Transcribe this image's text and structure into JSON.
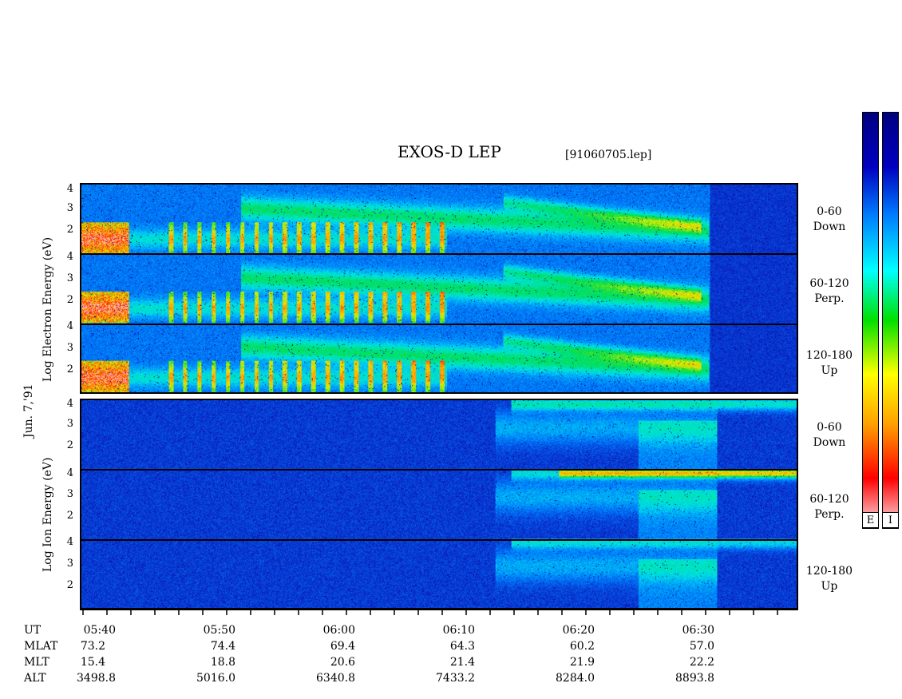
{
  "title": "EXOS-D LEP",
  "filename": "[91060705.lep]",
  "date_label": "Jun. 7,'91",
  "electron_axis_label": "Log   Electron   Energy (eV)",
  "ion_axis_label": "Log   Ion   Energy (eV)",
  "y_ticks": [
    "4",
    "3",
    "2"
  ],
  "pitch_labels": {
    "p1": [
      "0-60",
      "Down"
    ],
    "p2": [
      "60-120",
      "Perp."
    ],
    "p3": [
      "120-180",
      "Up"
    ],
    "p4": [
      "0-60",
      "Down"
    ],
    "p5": [
      "60-120",
      "Perp."
    ],
    "p6": [
      "120-180",
      "Up"
    ]
  },
  "colorbar_labels": [
    "E",
    "I"
  ],
  "row_labels": [
    "UT",
    "MLAT",
    "MLT",
    "ALT"
  ],
  "columns": [
    {
      "ut": "05:40",
      "mlat": "73.2",
      "mlt": "15.4",
      "alt": "3498.8"
    },
    {
      "ut": "05:50",
      "mlat": "74.4",
      "mlt": "18.8",
      "alt": "5016.0"
    },
    {
      "ut": "06:00",
      "mlat": "69.4",
      "mlt": "20.6",
      "alt": "6340.8"
    },
    {
      "ut": "06:10",
      "mlat": "64.3",
      "mlt": "21.4",
      "alt": "7433.2"
    },
    {
      "ut": "06:20",
      "mlat": "60.2",
      "mlt": "21.9",
      "alt": "8284.0"
    },
    {
      "ut": "06:30",
      "mlat": "57.0",
      "mlt": "22.2",
      "alt": "8893.8"
    }
  ],
  "chart_data": {
    "type": "heatmap",
    "title": "EXOS-D LEP",
    "xlabel": "UT",
    "ylabel": "Log Energy (eV)",
    "x_ticks": [
      "05:40",
      "05:50",
      "06:00",
      "06:10",
      "06:20",
      "06:30"
    ],
    "y_ticks": [
      2,
      3,
      4
    ],
    "series": [
      {
        "name": "Electron 0-60 Down"
      },
      {
        "name": "Electron 60-120 Perp."
      },
      {
        "name": "Electron 120-180 Up"
      },
      {
        "name": "Ion 0-60 Down"
      },
      {
        "name": "Ion 60-120 Perp."
      },
      {
        "name": "Ion 120-180 Up"
      }
    ],
    "colorscale": [
      "#f8e8ec",
      "#ff0000",
      "#ffa000",
      "#ffff00",
      "#00e000",
      "#00ffff",
      "#0080ff",
      "#0000c0",
      "#000080"
    ]
  }
}
